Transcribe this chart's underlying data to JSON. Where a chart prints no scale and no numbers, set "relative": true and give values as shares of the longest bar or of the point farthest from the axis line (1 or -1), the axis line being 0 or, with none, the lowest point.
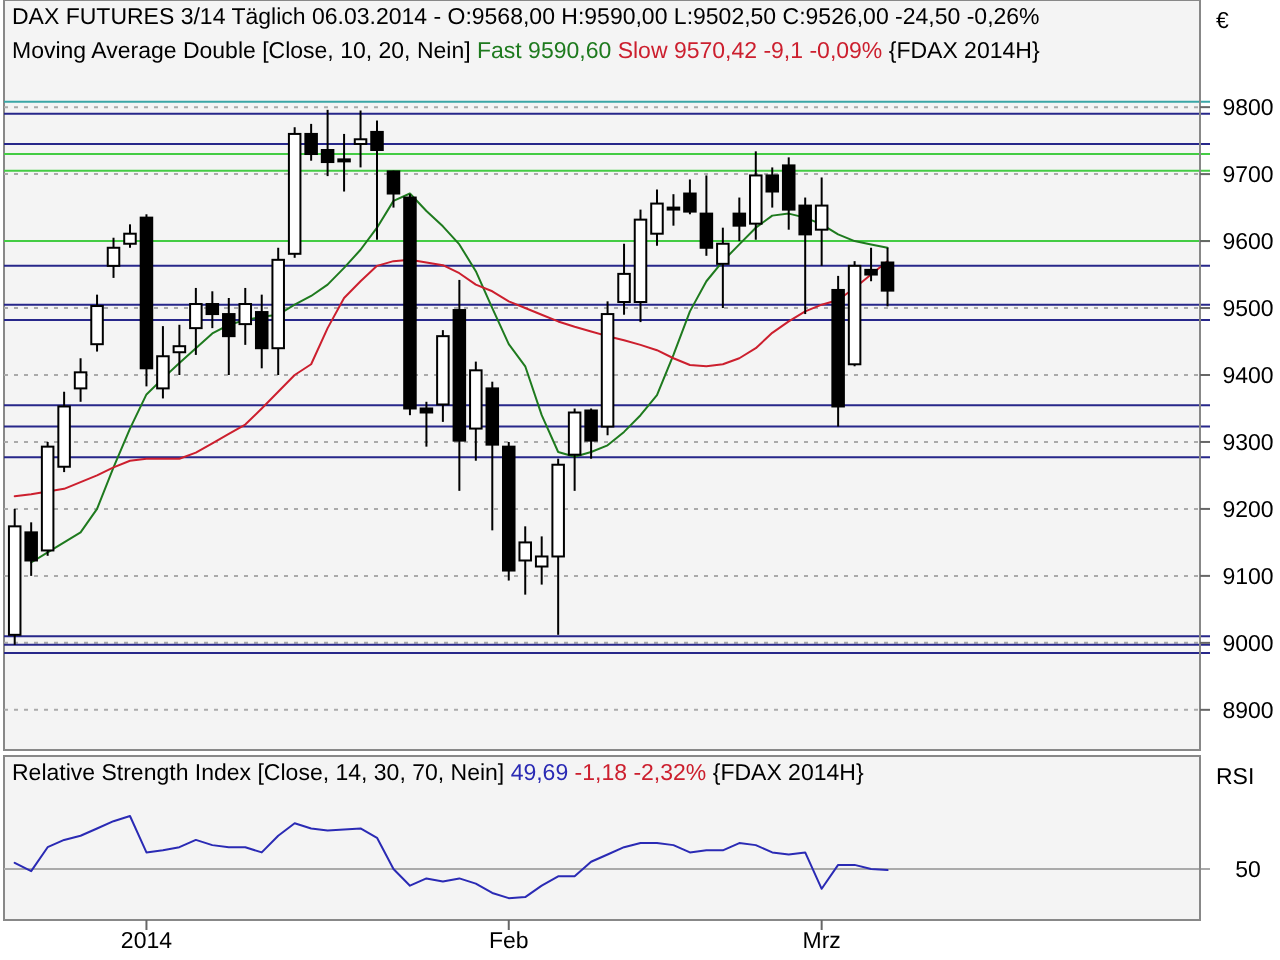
{
  "chart_data": [
    {
      "type": "candlestick",
      "title": "DAX FUTURES 3/14 Täglich  06.03.2014 - O:9568,00 H:9590,00 L:9502,50 C:9526,00 -24,50 -0,26%",
      "subtitle": "Moving Average Double [Close, 10, 20, Nein]",
      "ylabel": "€",
      "annotations": [
        "{FDAX 2014H}"
      ],
      "categories": [
        null,
        null,
        null,
        null,
        null,
        null,
        null,
        null,
        null,
        null,
        null,
        null,
        null,
        null,
        null,
        null,
        null,
        null,
        null,
        null,
        null,
        null,
        null,
        null,
        null,
        null,
        null,
        null,
        null,
        null,
        null,
        null,
        null,
        null,
        null,
        null,
        null,
        null,
        null,
        null,
        null,
        null,
        null,
        null,
        null,
        null,
        null,
        null,
        null,
        null,
        null,
        null,
        null,
        null
      ],
      "ohlc": [
        [
          9012,
          9200,
          8997,
          9174
        ],
        [
          9165,
          9180,
          9100,
          9123
        ],
        [
          9138,
          9300,
          9130,
          9293
        ],
        [
          9263,
          9375,
          9255,
          9353
        ],
        [
          9380,
          9425,
          9360,
          9404
        ],
        [
          9446,
          9520,
          9435,
          9503
        ],
        [
          9563,
          9605,
          9545,
          9590
        ],
        [
          9596,
          9625,
          9590,
          9611
        ],
        [
          9635,
          9640,
          9383,
          9410
        ],
        [
          9380,
          9473,
          9365,
          9428
        ],
        [
          9434,
          9475,
          9400,
          9443
        ],
        [
          9470,
          9530,
          9430,
          9506
        ],
        [
          9506,
          9525,
          9470,
          9491
        ],
        [
          9491,
          9515,
          9400,
          9458
        ],
        [
          9476,
          9530,
          9445,
          9506
        ],
        [
          9494,
          9520,
          9410,
          9440
        ],
        [
          9440,
          9590,
          9400,
          9572
        ],
        [
          9581,
          9770,
          9575,
          9760
        ],
        [
          9760,
          9775,
          9720,
          9730
        ],
        [
          9736,
          9796,
          9697,
          9718
        ],
        [
          9722,
          9760,
          9674,
          9722
        ],
        [
          9745,
          9795,
          9710,
          9752
        ],
        [
          9763,
          9780,
          9602,
          9736
        ],
        [
          9704,
          9705,
          9650,
          9671
        ],
        [
          9665,
          9670,
          9340,
          9350
        ],
        [
          9350,
          9360,
          9293,
          9344
        ],
        [
          9356,
          9467,
          9330,
          9458
        ],
        [
          9497,
          9542,
          9227,
          9302
        ],
        [
          9320,
          9420,
          9272,
          9407
        ],
        [
          9380,
          9390,
          9168,
          9296
        ],
        [
          9293,
          9300,
          9093,
          9108
        ],
        [
          9123,
          9174,
          9072,
          9150
        ],
        [
          9114,
          9159,
          9087,
          9129
        ],
        [
          9129,
          9275,
          9012,
          9266
        ],
        [
          9281,
          9350,
          9227,
          9344
        ],
        [
          9347,
          9350,
          9275,
          9302
        ],
        [
          9323,
          9510,
          9310,
          9491
        ],
        [
          9509,
          9596,
          9490,
          9551
        ],
        [
          9509,
          9647,
          9479,
          9632
        ],
        [
          9611,
          9677,
          9593,
          9656
        ],
        [
          9650,
          9670,
          9623,
          9650
        ],
        [
          9671,
          9692,
          9640,
          9644
        ],
        [
          9641,
          9698,
          9578,
          9590
        ],
        [
          9566,
          9620,
          9500,
          9596
        ],
        [
          9641,
          9665,
          9600,
          9623
        ],
        [
          9626,
          9734,
          9602,
          9698
        ],
        [
          9698,
          9710,
          9650,
          9674
        ],
        [
          9713,
          9725,
          9617,
          9647
        ],
        [
          9653,
          9665,
          9491,
          9610
        ],
        [
          9617,
          9695,
          9563,
          9653
        ],
        [
          9527,
          9548,
          9323,
          9353
        ],
        [
          9416,
          9570,
          9413,
          9563
        ],
        [
          9557,
          9590,
          9540,
          9550
        ],
        [
          9568,
          9590,
          9502.5,
          9526
        ]
      ],
      "series": [
        {
          "type": "line",
          "name": "Fast 9590,60",
          "color": "#1e7a1e",
          "values": [
            null,
            9120,
            9135,
            9150,
            9165,
            9200,
            9262,
            9320,
            9371,
            9395,
            9418,
            9440,
            9462,
            9475,
            9482,
            9487,
            9490,
            9505,
            9518,
            9535,
            9560,
            9587,
            9620,
            9660,
            9671,
            9645,
            9622,
            9595,
            9555,
            9500,
            9446,
            9413,
            9340,
            9285,
            9278,
            9285,
            9295,
            9315,
            9340,
            9370,
            9430,
            9495,
            9540,
            9570,
            9595,
            9620,
            9638,
            9641,
            9635,
            9625,
            9610,
            9600,
            9595,
            9590
          ]
        },
        {
          "type": "line",
          "name": "Slow 9570,42 -9,1 -0,09%",
          "color": "#cc1f2e",
          "values": [
            9219,
            9222,
            9226,
            9230,
            9240,
            9250,
            9262,
            9272,
            9275,
            9275,
            9275,
            9284,
            9298,
            9312,
            9326,
            9350,
            9375,
            9400,
            9416,
            9470,
            9515,
            9540,
            9563,
            9570,
            9572,
            9568,
            9564,
            9552,
            9535,
            9525,
            9510,
            9500,
            9490,
            9480,
            9472,
            9465,
            9458,
            9452,
            9445,
            9437,
            9425,
            9415,
            9413,
            9416,
            9425,
            9440,
            9463,
            9480,
            9495,
            9505,
            9512,
            9530,
            9550,
            9570
          ]
        }
      ],
      "ref_lines": [
        {
          "axis": "y",
          "value": 9808,
          "color": "#3aa6a6"
        },
        {
          "axis": "y",
          "value": 9790,
          "color": "#27278a"
        },
        {
          "axis": "y",
          "value": 9745,
          "color": "#27278a"
        },
        {
          "axis": "y",
          "value": 9730,
          "color": "#44cc44"
        },
        {
          "axis": "y",
          "value": 9705,
          "color": "#44cc44"
        },
        {
          "axis": "y",
          "value": 9600,
          "color": "#44cc44"
        },
        {
          "axis": "y",
          "value": 9563,
          "color": "#27278a"
        },
        {
          "axis": "y",
          "value": 9505,
          "color": "#27278a"
        },
        {
          "axis": "y",
          "value": 9482,
          "color": "#27278a"
        },
        {
          "axis": "y",
          "value": 9355,
          "color": "#27278a"
        },
        {
          "axis": "y",
          "value": 9323,
          "color": "#27278a"
        },
        {
          "axis": "y",
          "value": 9277,
          "color": "#27278a"
        },
        {
          "axis": "y",
          "value": 9010,
          "color": "#27278a"
        },
        {
          "axis": "y",
          "value": 8997,
          "color": "#27278a"
        },
        {
          "axis": "y",
          "value": 8985,
          "color": "#27278a"
        }
      ],
      "ylim": [
        8840,
        9960
      ],
      "yticks": [
        8900,
        9000,
        9100,
        9200,
        9300,
        9400,
        9500,
        9600,
        9700,
        9800
      ],
      "grid": "y",
      "legend": "top",
      "tick_labels": "y"
    },
    {
      "type": "line",
      "title": "Relative Strength Index [Close, 14, 30, 70, Nein]",
      "ylabel": "RSI",
      "annotations": [
        "-1,18 -2,32%",
        "{FDAX 2014H}",
        "50"
      ],
      "categories": [
        null,
        null,
        null,
        null,
        null,
        null,
        null,
        null,
        "2014",
        null,
        null,
        null,
        null,
        null,
        null,
        null,
        null,
        null,
        null,
        null,
        null,
        null,
        null,
        null,
        null,
        null,
        null,
        null,
        null,
        null,
        "Feb",
        null,
        null,
        null,
        null,
        null,
        null,
        null,
        null,
        null,
        null,
        null,
        null,
        null,
        null,
        null,
        null,
        null,
        null,
        "Mrz",
        null,
        null,
        null,
        null
      ],
      "series": [
        {
          "name": "49,69",
          "color": "#2a2ab4",
          "values": [
            0.55,
            0.47,
            0.7,
            0.77,
            0.81,
            0.88,
            0.95,
            1,
            0.65,
            0.67,
            0.7,
            0.77,
            0.72,
            0.7,
            0.7,
            0.65,
            0.81,
            0.93,
            0.88,
            0.86,
            0.87,
            0.88,
            0.79,
            0.49,
            0.33,
            0.4,
            0.37,
            0.4,
            0.35,
            0.26,
            0.21,
            0.22,
            0.33,
            0.42,
            0.42,
            0.56,
            0.63,
            0.7,
            0.74,
            0.74,
            0.72,
            0.65,
            0.67,
            0.67,
            0.74,
            0.72,
            0.65,
            0.63,
            0.65,
            0.3,
            0.53,
            0.53,
            0.49,
            0.48
          ]
        }
      ],
      "relative": true,
      "ref_lines": [
        {
          "axis": "y",
          "value": 0.49,
          "color": "#aaaaaa"
        }
      ],
      "legend": "top"
    }
  ]
}
